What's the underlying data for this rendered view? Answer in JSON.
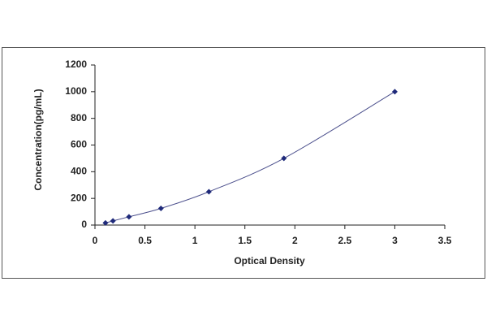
{
  "chart_data": {
    "type": "scatter",
    "xlabel": "Optical Density",
    "ylabel": "Concentration(pg/mL)",
    "series": [
      {
        "color": "#1f2a7a",
        "line_color": "#4b4f8c",
        "x": [
          0.105,
          0.18,
          0.34,
          0.66,
          1.14,
          1.89,
          3.0
        ],
        "values": [
          16,
          31,
          62,
          125,
          250,
          500,
          1000
        ]
      }
    ],
    "smooth_line": true,
    "xlim": [
      0,
      3.5
    ],
    "xticks": [
      0,
      0.5,
      1,
      1.5,
      2,
      2.5,
      3,
      3.5
    ],
    "ylim": [
      0,
      1200
    ],
    "yticks": [
      0,
      200,
      400,
      600,
      800,
      1000,
      1200
    ],
    "grid": false
  }
}
